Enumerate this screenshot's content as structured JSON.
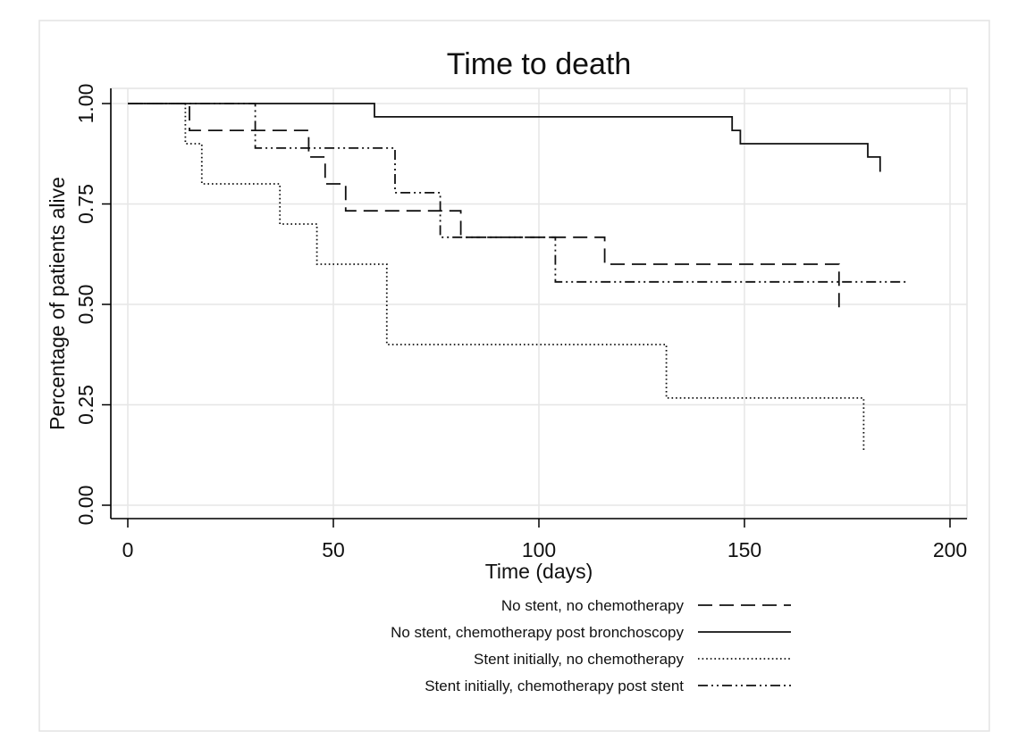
{
  "chart_data": {
    "type": "line",
    "step": true,
    "title": "Time to death",
    "xlabel": "Time (days)",
    "ylabel": "Percentage of patients alive",
    "xlim": [
      0,
      200
    ],
    "ylim": [
      0,
      1
    ],
    "xticks": [
      {
        "value": 0,
        "label": "0"
      },
      {
        "value": 50,
        "label": "50"
      },
      {
        "value": 100,
        "label": "100"
      },
      {
        "value": 150,
        "label": "150"
      },
      {
        "value": 200,
        "label": "200"
      }
    ],
    "yticks": [
      {
        "value": 0,
        "label": "0.00"
      },
      {
        "value": 0.25,
        "label": "0.25"
      },
      {
        "value": 0.5,
        "label": "0.50"
      },
      {
        "value": 0.75,
        "label": "0.75"
      },
      {
        "value": 1,
        "label": "1.00"
      }
    ],
    "grid": true,
    "legend_position": "bottom",
    "series": [
      {
        "name": "No stent, no chemotherapy",
        "style": "dashed",
        "points": [
          [
            0,
            1
          ],
          [
            15,
            1
          ],
          [
            15,
            0.933
          ],
          [
            44,
            0.933
          ],
          [
            44,
            0.867
          ],
          [
            48,
            0.867
          ],
          [
            48,
            0.8
          ],
          [
            53,
            0.8
          ],
          [
            53,
            0.733
          ],
          [
            81,
            0.733
          ],
          [
            81,
            0.667
          ],
          [
            116,
            0.667
          ],
          [
            116,
            0.6
          ],
          [
            173,
            0.6
          ],
          [
            173,
            0.48
          ]
        ]
      },
      {
        "name": "No stent, chemotherapy post bronchoscopy",
        "style": "solid",
        "points": [
          [
            0,
            1
          ],
          [
            60,
            1
          ],
          [
            60,
            0.967
          ],
          [
            147,
            0.967
          ],
          [
            147,
            0.933
          ],
          [
            149,
            0.933
          ],
          [
            149,
            0.9
          ],
          [
            180,
            0.9
          ],
          [
            180,
            0.867
          ],
          [
            183,
            0.867
          ],
          [
            183,
            0.83
          ]
        ]
      },
      {
        "name": "Stent initially, no chemotherapy",
        "style": "dotted",
        "points": [
          [
            0,
            1
          ],
          [
            14,
            1
          ],
          [
            14,
            0.9
          ],
          [
            18,
            0.9
          ],
          [
            18,
            0.8
          ],
          [
            37,
            0.8
          ],
          [
            37,
            0.7
          ],
          [
            46,
            0.7
          ],
          [
            46,
            0.6
          ],
          [
            63,
            0.6
          ],
          [
            63,
            0.4
          ],
          [
            131,
            0.4
          ],
          [
            131,
            0.267
          ],
          [
            179,
            0.267
          ],
          [
            179,
            0.133
          ]
        ]
      },
      {
        "name": "Stent initially, chemotherapy post stent",
        "style": "dashdotdot",
        "points": [
          [
            0,
            1
          ],
          [
            31,
            1
          ],
          [
            31,
            0.889
          ],
          [
            65,
            0.889
          ],
          [
            65,
            0.778
          ],
          [
            76,
            0.778
          ],
          [
            76,
            0.667
          ],
          [
            104,
            0.667
          ],
          [
            104,
            0.556
          ],
          [
            190,
            0.556
          ]
        ]
      }
    ]
  }
}
